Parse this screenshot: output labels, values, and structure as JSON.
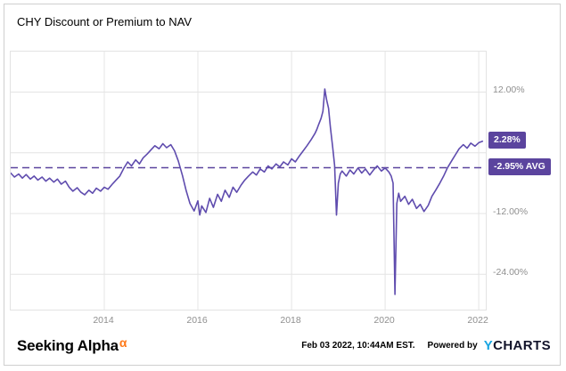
{
  "title": "CHY Discount or Premium to NAV",
  "colors": {
    "accent": "#5b449e",
    "line": "#5f4cae",
    "grid": "#e4e4e4",
    "tick_text": "#8f8f8f",
    "sa_orange": "#ff7a1a",
    "ycharts_blue": "#18a5e2"
  },
  "footer": {
    "sa_text": "Seeking Alpha",
    "sa_alpha": "α",
    "timestamp": "Feb 03 2022, 10:44AM EST.",
    "powered_by": "Powered by",
    "ycharts_y": "Y",
    "ycharts_rest": "CHARTS"
  },
  "chart_data": {
    "type": "line",
    "title": "CHY Discount or Premium to NAV",
    "xlabel": "",
    "ylabel": "",
    "xlim": [
      2012.0,
      2022.15
    ],
    "ylim": [
      -31,
      20
    ],
    "grid": true,
    "x_ticks": [
      {
        "value": 2014,
        "label": "2014"
      },
      {
        "value": 2016,
        "label": "2016"
      },
      {
        "value": 2018,
        "label": "2018"
      },
      {
        "value": 2020,
        "label": "2020"
      },
      {
        "value": 2022,
        "label": "2022"
      }
    ],
    "y_ticks": [
      {
        "value": 12,
        "label": "12.00%"
      },
      {
        "value": -12,
        "label": "-12.00%"
      },
      {
        "value": -24,
        "label": "-24.00%"
      }
    ],
    "grid_y": [
      12,
      0,
      -12,
      -24
    ],
    "average": {
      "value": -2.95,
      "label": "-2.95% AVG"
    },
    "last": {
      "value": 2.28,
      "label": "2.28%"
    },
    "series": [
      {
        "name": "CHY Discount or Premium to NAV",
        "points": [
          [
            2012.0,
            -4.0
          ],
          [
            2012.08,
            -4.8
          ],
          [
            2012.17,
            -4.2
          ],
          [
            2012.25,
            -5.0
          ],
          [
            2012.33,
            -4.3
          ],
          [
            2012.42,
            -5.2
          ],
          [
            2012.5,
            -4.6
          ],
          [
            2012.58,
            -5.4
          ],
          [
            2012.67,
            -4.8
          ],
          [
            2012.75,
            -5.6
          ],
          [
            2012.83,
            -5.0
          ],
          [
            2012.92,
            -5.8
          ],
          [
            2013.0,
            -5.2
          ],
          [
            2013.08,
            -6.2
          ],
          [
            2013.17,
            -5.6
          ],
          [
            2013.25,
            -6.8
          ],
          [
            2013.33,
            -7.6
          ],
          [
            2013.42,
            -6.9
          ],
          [
            2013.5,
            -7.8
          ],
          [
            2013.58,
            -8.3
          ],
          [
            2013.67,
            -7.4
          ],
          [
            2013.75,
            -8.0
          ],
          [
            2013.83,
            -7.0
          ],
          [
            2013.92,
            -7.6
          ],
          [
            2014.0,
            -6.8
          ],
          [
            2014.08,
            -7.2
          ],
          [
            2014.17,
            -6.2
          ],
          [
            2014.25,
            -5.4
          ],
          [
            2014.33,
            -4.6
          ],
          [
            2014.42,
            -3.0
          ],
          [
            2014.5,
            -1.8
          ],
          [
            2014.58,
            -2.6
          ],
          [
            2014.67,
            -1.4
          ],
          [
            2014.75,
            -2.2
          ],
          [
            2014.83,
            -1.0
          ],
          [
            2014.92,
            -0.2
          ],
          [
            2015.0,
            0.6
          ],
          [
            2015.08,
            1.4
          ],
          [
            2015.17,
            0.8
          ],
          [
            2015.25,
            1.8
          ],
          [
            2015.33,
            1.0
          ],
          [
            2015.42,
            1.6
          ],
          [
            2015.5,
            0.4
          ],
          [
            2015.58,
            -1.6
          ],
          [
            2015.67,
            -4.5
          ],
          [
            2015.75,
            -7.5
          ],
          [
            2015.83,
            -10.0
          ],
          [
            2015.92,
            -11.5
          ],
          [
            2016.0,
            -9.5
          ],
          [
            2016.04,
            -12.3
          ],
          [
            2016.08,
            -10.5
          ],
          [
            2016.17,
            -11.8
          ],
          [
            2016.25,
            -9.0
          ],
          [
            2016.33,
            -10.8
          ],
          [
            2016.42,
            -8.2
          ],
          [
            2016.5,
            -9.6
          ],
          [
            2016.58,
            -7.4
          ],
          [
            2016.67,
            -8.8
          ],
          [
            2016.75,
            -6.8
          ],
          [
            2016.83,
            -7.8
          ],
          [
            2016.92,
            -6.4
          ],
          [
            2017.0,
            -5.4
          ],
          [
            2017.08,
            -4.6
          ],
          [
            2017.17,
            -3.8
          ],
          [
            2017.25,
            -4.4
          ],
          [
            2017.33,
            -3.2
          ],
          [
            2017.42,
            -3.8
          ],
          [
            2017.5,
            -2.6
          ],
          [
            2017.58,
            -3.2
          ],
          [
            2017.67,
            -2.2
          ],
          [
            2017.75,
            -2.8
          ],
          [
            2017.83,
            -1.8
          ],
          [
            2017.92,
            -2.4
          ],
          [
            2018.0,
            -1.2
          ],
          [
            2018.08,
            -1.8
          ],
          [
            2018.17,
            -0.6
          ],
          [
            2018.25,
            0.4
          ],
          [
            2018.33,
            1.4
          ],
          [
            2018.42,
            2.6
          ],
          [
            2018.5,
            3.8
          ],
          [
            2018.54,
            4.6
          ],
          [
            2018.58,
            5.6
          ],
          [
            2018.63,
            6.8
          ],
          [
            2018.67,
            8.2
          ],
          [
            2018.71,
            12.6
          ],
          [
            2018.75,
            10.4
          ],
          [
            2018.79,
            8.8
          ],
          [
            2018.83,
            5.0
          ],
          [
            2018.88,
            1.0
          ],
          [
            2018.92,
            -2.5
          ],
          [
            2018.96,
            -12.3
          ],
          [
            2019.0,
            -6.0
          ],
          [
            2019.04,
            -4.2
          ],
          [
            2019.08,
            -3.6
          ],
          [
            2019.17,
            -4.6
          ],
          [
            2019.25,
            -3.4
          ],
          [
            2019.33,
            -4.2
          ],
          [
            2019.42,
            -3.0
          ],
          [
            2019.5,
            -4.0
          ],
          [
            2019.58,
            -3.2
          ],
          [
            2019.67,
            -4.4
          ],
          [
            2019.75,
            -3.4
          ],
          [
            2019.83,
            -2.6
          ],
          [
            2019.92,
            -3.6
          ],
          [
            2020.0,
            -3.0
          ],
          [
            2020.08,
            -3.8
          ],
          [
            2020.13,
            -4.6
          ],
          [
            2020.17,
            -6.0
          ],
          [
            2020.21,
            -28.0
          ],
          [
            2020.25,
            -10.0
          ],
          [
            2020.29,
            -8.0
          ],
          [
            2020.33,
            -9.6
          ],
          [
            2020.42,
            -8.6
          ],
          [
            2020.5,
            -10.2
          ],
          [
            2020.58,
            -9.2
          ],
          [
            2020.67,
            -11.0
          ],
          [
            2020.75,
            -10.2
          ],
          [
            2020.83,
            -11.6
          ],
          [
            2020.92,
            -10.4
          ],
          [
            2021.0,
            -8.6
          ],
          [
            2021.08,
            -7.4
          ],
          [
            2021.17,
            -6.0
          ],
          [
            2021.25,
            -4.6
          ],
          [
            2021.33,
            -3.0
          ],
          [
            2021.42,
            -1.6
          ],
          [
            2021.5,
            -0.4
          ],
          [
            2021.58,
            0.8
          ],
          [
            2021.67,
            1.6
          ],
          [
            2021.75,
            0.9
          ],
          [
            2021.83,
            1.9
          ],
          [
            2021.92,
            1.3
          ],
          [
            2022.0,
            2.0
          ],
          [
            2022.08,
            2.28
          ]
        ]
      }
    ]
  }
}
